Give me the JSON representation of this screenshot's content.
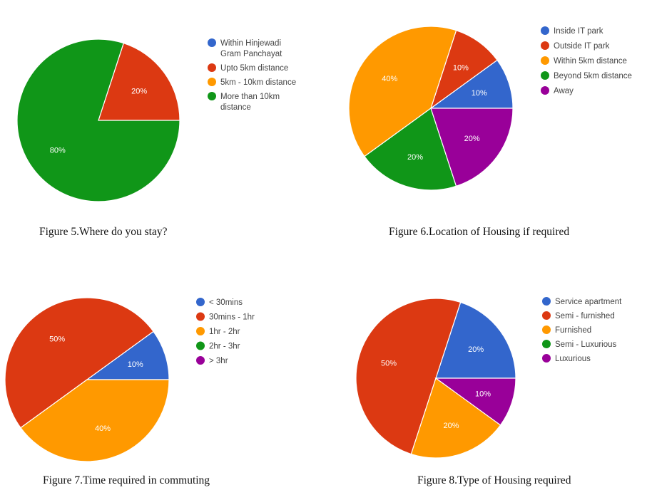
{
  "colors": {
    "blue": "#3366cc",
    "red": "#dc3912",
    "orange": "#ff9900",
    "green": "#109618",
    "purple": "#990099"
  },
  "chart_data": [
    {
      "type": "pie",
      "caption": "Figure 5.Where do you stay?",
      "legend_position": "right",
      "legend": [
        [
          "Within Hinjewadi",
          "Gram Panchayat"
        ],
        [
          "Upto 5km distance"
        ],
        [
          "5km - 10km distance"
        ],
        [
          "More than 10km",
          "distance"
        ]
      ],
      "values": [
        0,
        20,
        0,
        80
      ],
      "labels": [
        "",
        "20%",
        "",
        "80%"
      ]
    },
    {
      "type": "pie",
      "caption": "Figure 6.Location of Housing if required",
      "legend_position": "right",
      "legend": [
        [
          "Inside IT park"
        ],
        [
          "Outside IT park"
        ],
        [
          "Within 5km distance"
        ],
        [
          "Beyond 5km distance"
        ],
        [
          "Away"
        ]
      ],
      "values": [
        10,
        10,
        40,
        20,
        20
      ],
      "labels": [
        "10%",
        "10%",
        "40%",
        "20%",
        "20%"
      ]
    },
    {
      "type": "pie",
      "caption": "Figure 7.Time required in commuting",
      "legend_position": "right",
      "legend": [
        [
          "< 30mins"
        ],
        [
          "30mins - 1hr"
        ],
        [
          "1hr - 2hr"
        ],
        [
          "2hr - 3hr"
        ],
        [
          "> 3hr"
        ]
      ],
      "values": [
        10,
        50,
        40,
        0,
        0
      ],
      "labels": [
        "10%",
        "50%",
        "40%",
        "",
        ""
      ]
    },
    {
      "type": "pie",
      "caption": "Figure 8.Type of Housing required",
      "legend_position": "right",
      "legend": [
        [
          "Service apartment"
        ],
        [
          "Semi - furnished"
        ],
        [
          "Furnished"
        ],
        [
          "Semi - Luxurious"
        ],
        [
          "Luxurious"
        ]
      ],
      "values": [
        20,
        50,
        20,
        0,
        10
      ],
      "labels": [
        "20%",
        "50%",
        "20%",
        "",
        "10%"
      ]
    }
  ]
}
